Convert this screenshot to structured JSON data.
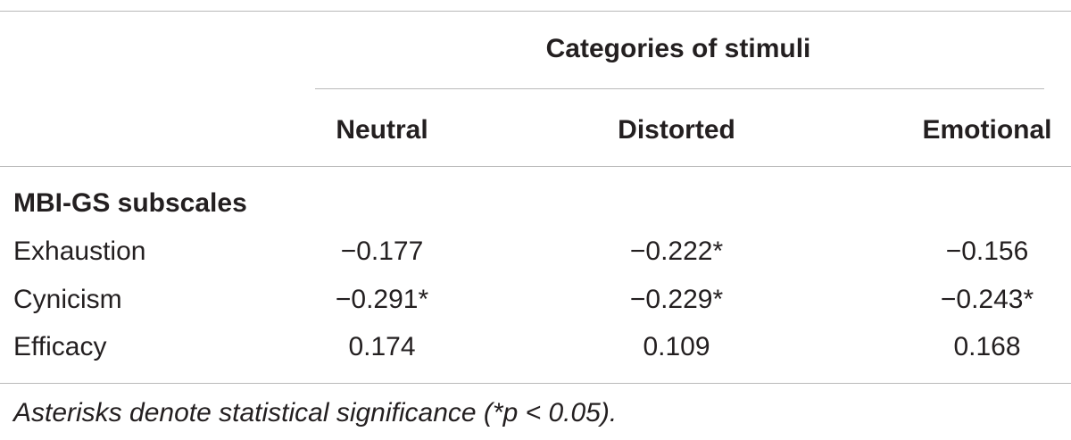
{
  "table": {
    "group_header": "Categories of stimuli",
    "columns": [
      "Neutral",
      "Distorted",
      "Emotional"
    ],
    "section_label": "MBI-GS subscales",
    "rows": [
      {
        "label": "Exhaustion",
        "values": [
          "−0.177",
          "−0.222*",
          "−0.156"
        ]
      },
      {
        "label": "Cynicism",
        "values": [
          "−0.291*",
          "−0.229*",
          "−0.243*"
        ]
      },
      {
        "label": "Efficacy",
        "values": [
          "0.174",
          "0.109",
          "0.168"
        ]
      }
    ],
    "footnote": "Asterisks denote statistical significance (*p < 0.05)."
  }
}
